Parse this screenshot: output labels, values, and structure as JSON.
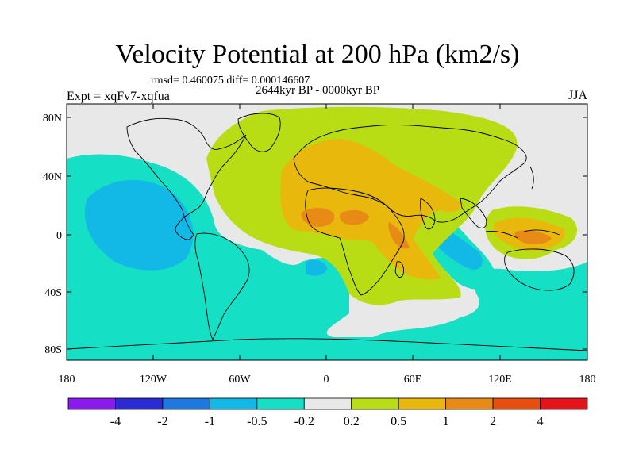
{
  "header": {
    "title": "Velocity Potential at 200 hPa (km2/s)",
    "stats": "rmsd= 0.460075 diff= 0.000146607",
    "experiment": "Expt = xqFv7-xqfua",
    "period": "2644kyr BP - 0000kyr BP",
    "season": "JJA"
  },
  "axes": {
    "lat_ticks": [
      "80N",
      "40N",
      "0",
      "40S",
      "80S"
    ],
    "lon_ticks": [
      "180",
      "120W",
      "60W",
      "0",
      "60E",
      "120E",
      "180"
    ]
  },
  "colorbar": {
    "labels": [
      "-4",
      "-2",
      "-1",
      "-0.5",
      "-0.2",
      "0.2",
      "0.5",
      "1",
      "2",
      "4"
    ],
    "colors": [
      "#8a1aee",
      "#2b2bd6",
      "#1f78e0",
      "#12b8e6",
      "#15e0c6",
      "#e8e8e8",
      "#b8dd14",
      "#e8b80c",
      "#e88a16",
      "#e84e10",
      "#e6141a"
    ]
  },
  "map_colors": {
    "background": "#e8e8e8",
    "neg_weak": "#15e0c6",
    "neg_mid": "#12b8e6",
    "neg_strong": "#1f78e0",
    "pos_weak": "#b8dd14",
    "pos_mid": "#e8b80c",
    "pos_strong": "#e88a16",
    "coast": "#000000"
  }
}
